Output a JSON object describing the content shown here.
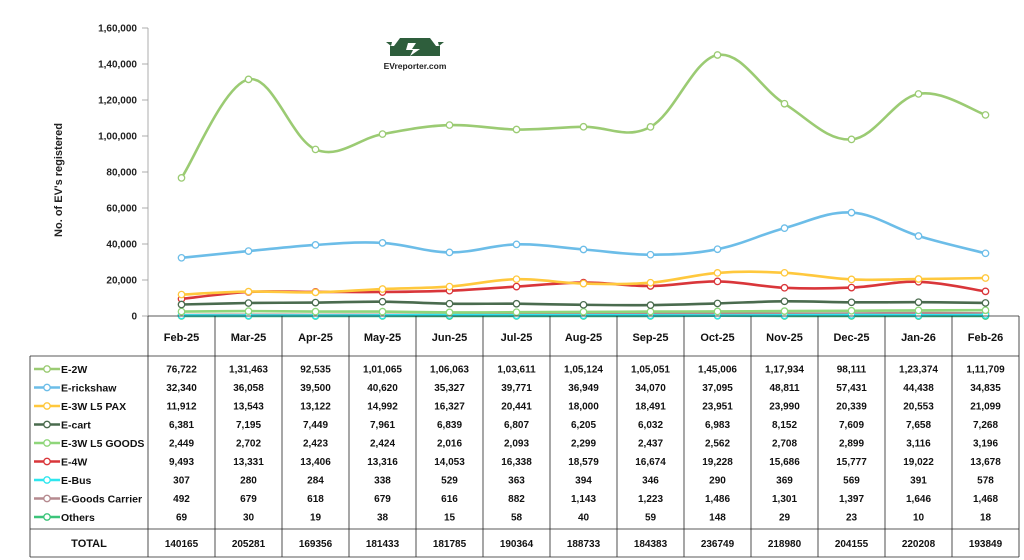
{
  "brand": {
    "logo_text": "EVreporter.com",
    "color": "#2e5e3c"
  },
  "chart_data": {
    "type": "line",
    "title": "",
    "xlabel": "",
    "ylabel": "No. of EV's registered",
    "ylim": [
      0,
      160000
    ],
    "yticks": [
      "0",
      "20,000",
      "40,000",
      "60,000",
      "80,000",
      "1,00,000",
      "1,20,000",
      "1,40,000",
      "1,60,000"
    ],
    "categories": [
      "Feb-25",
      "Mar-25",
      "Apr-25",
      "May-25",
      "Jun-25",
      "Jul-25",
      "Aug-25",
      "Sep-25",
      "Oct-25",
      "Nov-25",
      "Dec-25",
      "Jan-26",
      "Feb-26"
    ],
    "series": [
      {
        "name": "E-2W",
        "color": "#9bcb73",
        "values": [
          76722,
          131463,
          92535,
          101065,
          106063,
          103611,
          105124,
          105051,
          145006,
          117934,
          98111,
          123374,
          111709
        ],
        "labels": [
          "76,722",
          "1,31,463",
          "92,535",
          "1,01,065",
          "1,06,063",
          "1,03,611",
          "1,05,124",
          "1,05,051",
          "1,45,006",
          "1,17,934",
          "98,111",
          "1,23,374",
          "1,11,709"
        ]
      },
      {
        "name": "E-rickshaw",
        "color": "#6cbde8",
        "values": [
          32340,
          36058,
          39500,
          40620,
          35327,
          39771,
          36949,
          34070,
          37095,
          48811,
          57431,
          44438,
          34835
        ],
        "labels": [
          "32,340",
          "36,058",
          "39,500",
          "40,620",
          "35,327",
          "39,771",
          "36,949",
          "34,070",
          "37,095",
          "48,811",
          "57,431",
          "44,438",
          "34,835"
        ]
      },
      {
        "name": "E-3W L5 PAX",
        "color": "#ffc83d",
        "values": [
          11912,
          13543,
          13122,
          14992,
          16327,
          20441,
          18000,
          18491,
          23951,
          23990,
          20339,
          20553,
          21099
        ],
        "labels": [
          "11,912",
          "13,543",
          "13,122",
          "14,992",
          "16,327",
          "20,441",
          "18,000",
          "18,491",
          "23,951",
          "23,990",
          "20,339",
          "20,553",
          "21,099"
        ]
      },
      {
        "name": "E-cart",
        "color": "#4a6b4e",
        "values": [
          6381,
          7195,
          7449,
          7961,
          6839,
          6807,
          6205,
          6032,
          6983,
          8152,
          7609,
          7658,
          7268
        ],
        "labels": [
          "6,381",
          "7,195",
          "7,449",
          "7,961",
          "6,839",
          "6,807",
          "6,205",
          "6,032",
          "6,983",
          "8,152",
          "7,609",
          "7,658",
          "7,268"
        ]
      },
      {
        "name": "E-3W L5 GOODS",
        "color": "#8fd67a",
        "values": [
          2449,
          2702,
          2423,
          2424,
          2016,
          2093,
          2299,
          2437,
          2562,
          2708,
          2899,
          3116,
          3196
        ],
        "labels": [
          "2,449",
          "2,702",
          "2,423",
          "2,424",
          "2,016",
          "2,093",
          "2,299",
          "2,437",
          "2,562",
          "2,708",
          "2,899",
          "3,116",
          "3,196"
        ]
      },
      {
        "name": "E-4W",
        "color": "#d9363a",
        "values": [
          9493,
          13331,
          13406,
          13316,
          14053,
          16338,
          18579,
          16674,
          19228,
          15686,
          15777,
          19022,
          13678
        ],
        "labels": [
          "9,493",
          "13,331",
          "13,406",
          "13,316",
          "14,053",
          "16,338",
          "18,579",
          "16,674",
          "19,228",
          "15,686",
          "15,777",
          "19,022",
          "13,678"
        ]
      },
      {
        "name": "E-Bus",
        "color": "#2ee6ee",
        "values": [
          307,
          280,
          284,
          338,
          529,
          363,
          394,
          346,
          290,
          369,
          569,
          391,
          578
        ],
        "labels": [
          "307",
          "280",
          "284",
          "338",
          "529",
          "363",
          "394",
          "346",
          "290",
          "369",
          "569",
          "391",
          "578"
        ]
      },
      {
        "name": "E-Goods Carrier",
        "color": "#b58a8f",
        "values": [
          492,
          679,
          618,
          679,
          616,
          882,
          1143,
          1223,
          1486,
          1301,
          1397,
          1646,
          1468
        ],
        "labels": [
          "492",
          "679",
          "618",
          "679",
          "616",
          "882",
          "1,143",
          "1,223",
          "1,486",
          "1,301",
          "1,397",
          "1,646",
          "1,468"
        ]
      },
      {
        "name": "Others",
        "color": "#3cc47a",
        "values": [
          69,
          30,
          19,
          38,
          15,
          58,
          40,
          59,
          148,
          29,
          23,
          10,
          18
        ],
        "labels": [
          "69",
          "30",
          "19",
          "38",
          "15",
          "58",
          "40",
          "59",
          "148",
          "29",
          "23",
          "10",
          "18"
        ]
      }
    ],
    "total": {
      "label": "TOTAL",
      "values": [
        "140165",
        "205281",
        "169356",
        "181433",
        "181785",
        "190364",
        "188733",
        "184383",
        "236749",
        "218980",
        "204155",
        "220208",
        "193849"
      ]
    }
  }
}
